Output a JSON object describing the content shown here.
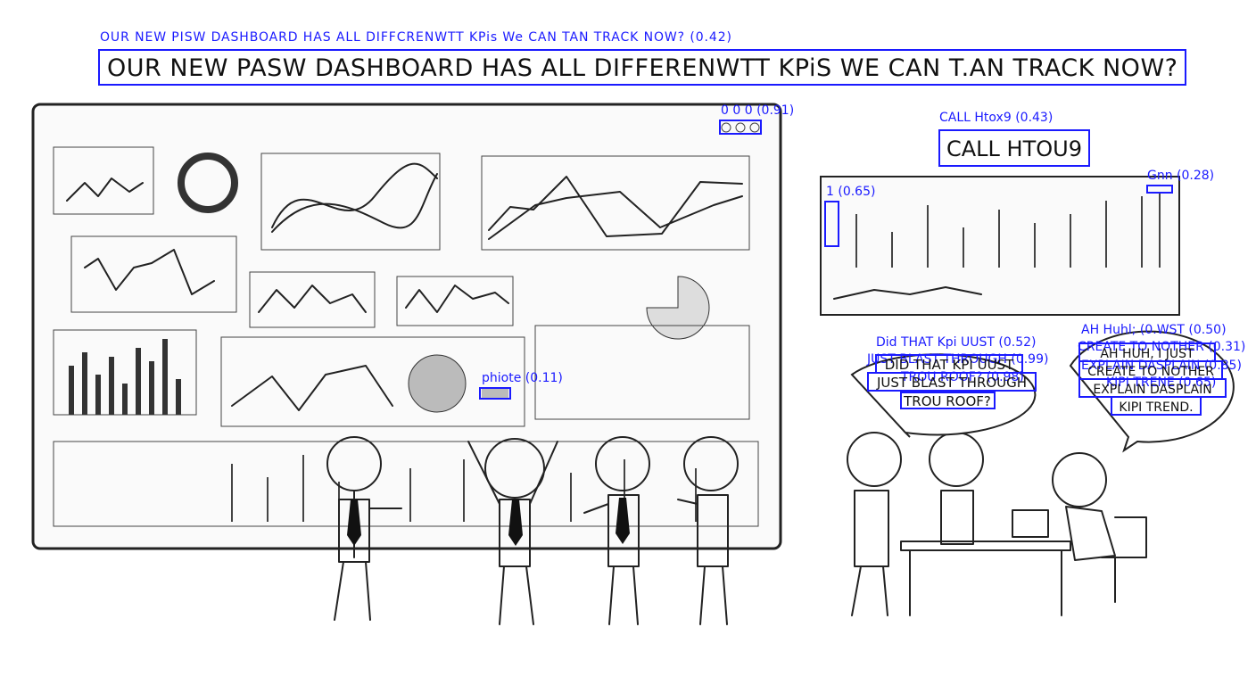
{
  "headline": {
    "ocr_label": "OUR NEW PISW DASHBOARD HAS ALL DIFFCRENWTT KPis We CAN TAN TRACK NOW? (0.42)",
    "text": "OUR NEW PASW DASHBOARD HAS ALL DIFFERENWTT KPiS WE CAN T.AN TRACK NOW?"
  },
  "dashboard": {
    "buttons_label": "0 0 0 (0.91)",
    "legend_label": "phiote (0.11)"
  },
  "phone_note": {
    "ocr_label": "CALL Htox9 (0.43)",
    "text": "CALL HTOU9"
  },
  "side_chart": {
    "corner_label": "Gnn (0.28)",
    "axis_label": "1 (0.65)"
  },
  "left_bubble": {
    "ocr_labels": [
      "Did THAT Kpi UUST (0.52)",
      "JUST BLAST THROUGH (0.99)",
      "TROU ROOF? (0.98)"
    ],
    "lines": [
      "DID THAT KPI UUST",
      "JUST BLAST THROUGH",
      "TROU ROOF?"
    ]
  },
  "right_bubble": {
    "ocr_labels": [
      "AH Huhl; (0.WST (0.50)",
      "CREATE TO NOTHER (0.31)",
      "EXPLAIN DASPLAIN (0.85)",
      "KIPI TRENE (0.65)"
    ],
    "lines": [
      "AH HUH, I JUST",
      "CREATE TO NOTHER",
      "EXPLAIN DASPLAIN",
      "KIPI TREND."
    ]
  }
}
